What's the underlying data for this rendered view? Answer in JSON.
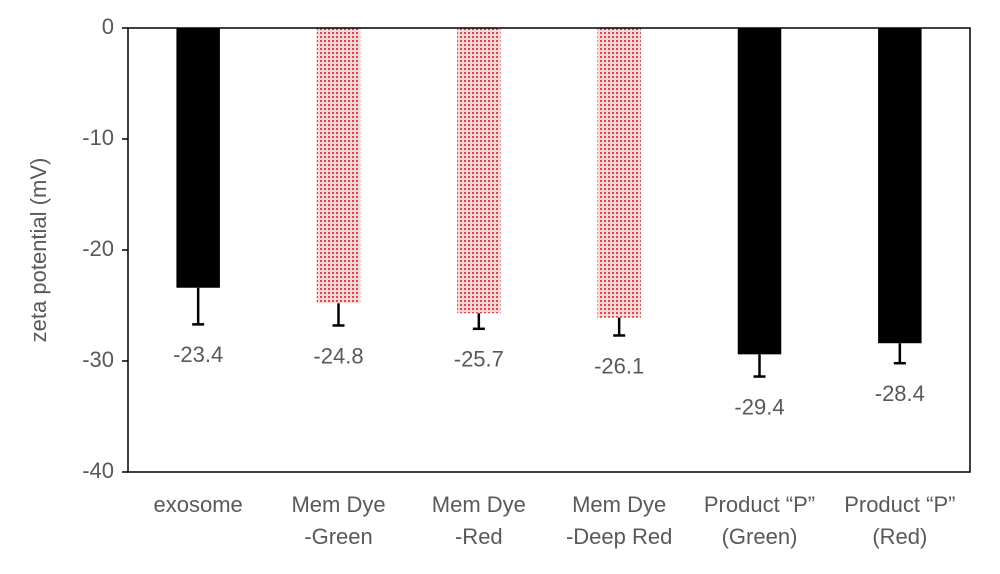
{
  "chart_data": {
    "type": "bar",
    "ylabel": "zeta potential (mV)",
    "categories": [
      [
        "exosome"
      ],
      [
        "Mem Dye",
        "-Green"
      ],
      [
        "Mem Dye",
        "-Red"
      ],
      [
        "Mem Dye",
        "-Deep Red"
      ],
      [
        "Product “P”",
        "(Green)"
      ],
      [
        "Product “P”",
        "(Red)"
      ]
    ],
    "values": [
      -23.4,
      -24.8,
      -25.7,
      -26.1,
      -29.4,
      -28.4
    ],
    "errors": [
      3.3,
      2.0,
      1.4,
      1.6,
      2.0,
      1.8
    ],
    "colors": [
      "#000000",
      "#d9484c",
      "#d9484c",
      "#d9484c",
      "#000000",
      "#000000"
    ],
    "hatched": [
      false,
      true,
      true,
      true,
      false,
      false
    ],
    "ylim": [
      -40,
      0
    ],
    "yticks": [
      0,
      -10,
      -20,
      -30,
      -40
    ],
    "grid": false
  }
}
